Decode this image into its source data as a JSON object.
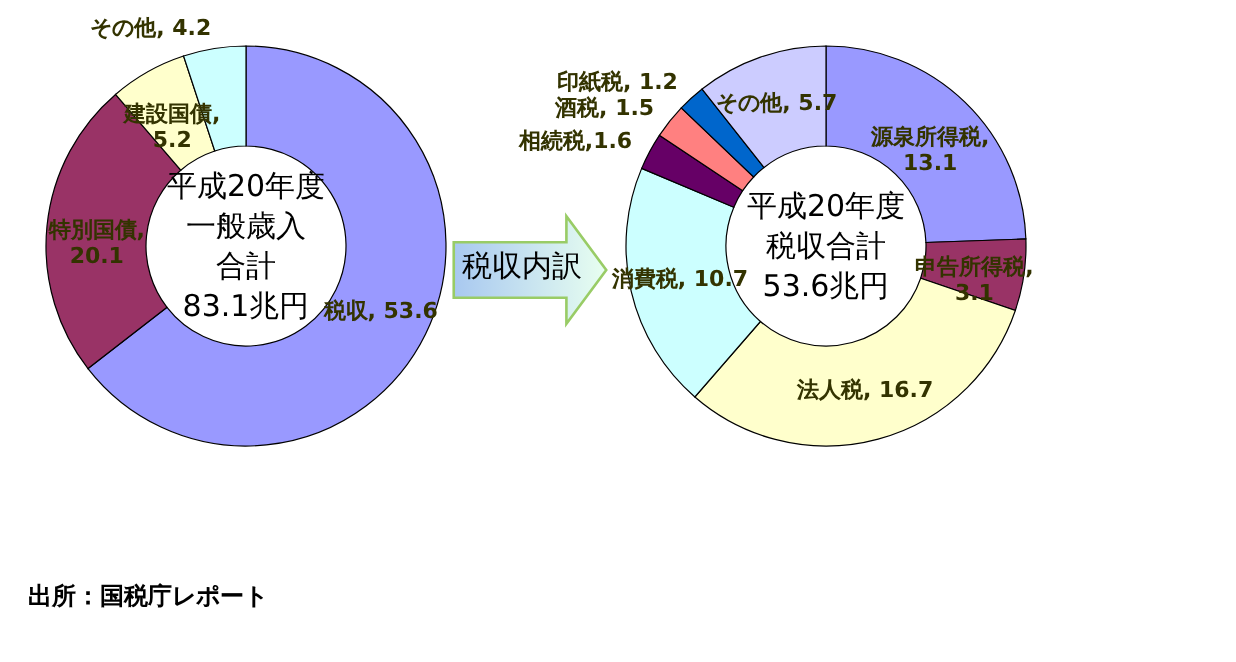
{
  "chart_data": [
    {
      "type": "donut",
      "categories": [
        "税収",
        "特別国債",
        "建設国債",
        "その他"
      ],
      "values": [
        53.6,
        20.1,
        5.2,
        4.2
      ],
      "colors": [
        "#9999ff",
        "#993366",
        "#ffffcc",
        "#ccffff"
      ],
      "value_labels": [
        ", 53.6",
        ",\n20.1",
        ",\n5.2",
        ", 4.2"
      ],
      "annotations": [
        "平成20年度",
        "一般歳入",
        "合計",
        "83.1兆円",
        "出所：国税庁レポート"
      ]
    },
    {
      "type": "donut",
      "categories": [
        "源泉所得税",
        "申告所得税",
        "法人税",
        "消費税",
        "相続税",
        "酒税",
        "印紙税",
        "その他"
      ],
      "values": [
        13.1,
        3.1,
        16.7,
        10.7,
        1.6,
        1.5,
        1.2,
        5.7
      ],
      "colors": [
        "#9999ff",
        "#993366",
        "#ffffcc",
        "#ccffff",
        "#660066",
        "#ff8080",
        "#0066cc",
        "#ccccff"
      ],
      "value_labels": [
        ",\n13.1",
        ",\n3.1",
        ", 16.7",
        ", 10.7",
        ",1.6",
        ", 1.5",
        ", 1.2",
        ", 5.7"
      ],
      "annotations": [
        "平成20年度",
        "税収合計",
        "53.6兆円",
        "税収内訳"
      ]
    }
  ]
}
